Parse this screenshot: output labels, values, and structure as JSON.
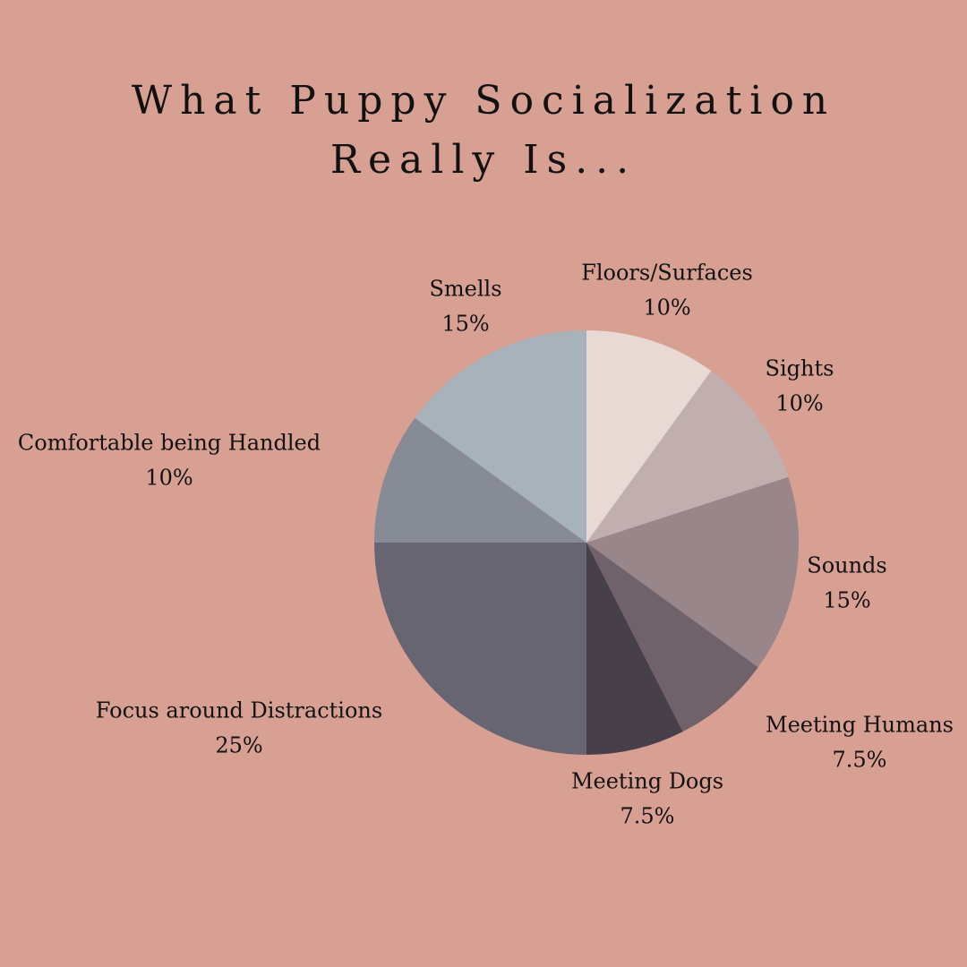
{
  "chart_data": {
    "type": "pie",
    "title": "What Puppy Socialization Really Is...",
    "categories": [
      "Floors/Surfaces",
      "Sights",
      "Sounds",
      "Meeting Humans",
      "Meeting Dogs",
      "Focus around Distractions",
      "Comfortable being Handled",
      "Smells"
    ],
    "values": [
      10,
      10,
      15,
      7.5,
      7.5,
      25,
      10,
      15
    ],
    "value_labels": [
      "10%",
      "10%",
      "15%",
      "7.5%",
      "7.5%",
      "25%",
      "10%",
      "15%"
    ],
    "colors": [
      "#e8d9d4",
      "#c1aeae",
      "#98868a",
      "#6f626b",
      "#47404b",
      "#686572",
      "#878b96",
      "#a7b2bb"
    ]
  }
}
